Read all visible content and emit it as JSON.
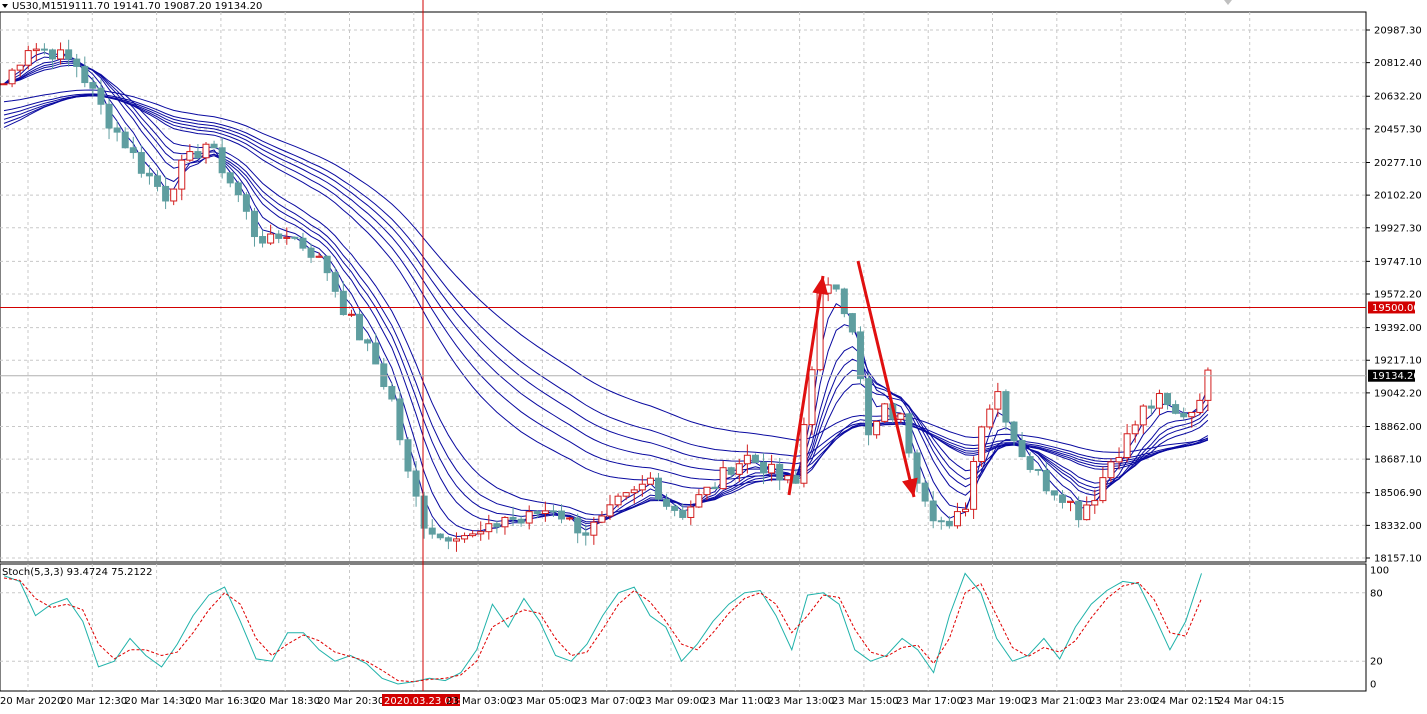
{
  "header": {
    "symbol": "US30,M15",
    "ohlc": "19111.70 19141.70 19087.20 19134.20"
  },
  "indicator": {
    "label": "Stoch(5,3,3) 93.4724 75.2122",
    "levels": [
      "100",
      "80",
      "20",
      "0"
    ]
  },
  "price_axis": {
    "labels": [
      "20987.30",
      "20812.40",
      "20632.20",
      "20457.30",
      "20277.10",
      "20102.20",
      "19927.30",
      "19747.10",
      "19572.20",
      "19392.00",
      "19217.10",
      "19042.20",
      "18862.00",
      "18687.10",
      "18506.90",
      "18332.00",
      "18157.10"
    ],
    "hline_label": "19500.00",
    "current_label": "19134.20"
  },
  "time_axis": {
    "labels": [
      "20 Mar 2020",
      "20 Mar 12:30",
      "20 Mar 14:30",
      "20 Mar 16:30",
      "20 Mar 18:30",
      "20 Mar 20:30",
      "2020.03.23 01:00",
      "23 Mar 03:00",
      "23 Mar 05:00",
      "23 Mar 07:00",
      "23 Mar 09:00",
      "23 Mar 11:00",
      "23 Mar 13:00",
      "23 Mar 15:00",
      "23 Mar 17:00",
      "23 Mar 19:00",
      "23 Mar 21:00",
      "23 Mar 23:00",
      "24 Mar 02:15",
      "24 Mar 04:15"
    ]
  },
  "colors": {
    "bull": "#d21e1e",
    "bear": "#5f9ea0",
    "ma": "#0a0aa0",
    "crosshair": "#d20000",
    "stoch_main": "#20b2aa",
    "stoch_signal": "#e00000",
    "grid": "#c8c8c8"
  },
  "chart_data": {
    "type": "candlestick",
    "symbol": "US30",
    "timeframe": "M15",
    "ylim": [
      18157.1,
      20987.3
    ],
    "horizontal_line": 19500.0,
    "current_price": 19134.2,
    "close_path": [
      [
        0,
        20700
      ],
      [
        3,
        20900
      ],
      [
        6,
        20870
      ],
      [
        9,
        20800
      ],
      [
        11,
        20650
      ],
      [
        13,
        20500
      ],
      [
        15,
        20380
      ],
      [
        17,
        20250
      ],
      [
        20,
        20100
      ],
      [
        22,
        20250
      ],
      [
        25,
        20380
      ],
      [
        27,
        20250
      ],
      [
        29,
        20100
      ],
      [
        31,
        19900
      ],
      [
        33,
        19850
      ],
      [
        35,
        19900
      ],
      [
        38,
        19800
      ],
      [
        40,
        19700
      ],
      [
        42,
        19500
      ],
      [
        44,
        19350
      ],
      [
        46,
        19200
      ],
      [
        48,
        19000
      ],
      [
        50,
        18600
      ],
      [
        52,
        18350
      ],
      [
        54,
        18270
      ],
      [
        56,
        18300
      ],
      [
        58,
        18270
      ],
      [
        60,
        18300
      ],
      [
        62,
        18380
      ],
      [
        64,
        18350
      ],
      [
        66,
        18400
      ],
      [
        68,
        18430
      ],
      [
        70,
        18350
      ],
      [
        72,
        18300
      ],
      [
        74,
        18350
      ],
      [
        76,
        18450
      ],
      [
        78,
        18500
      ],
      [
        80,
        18580
      ],
      [
        82,
        18450
      ],
      [
        84,
        18400
      ],
      [
        86,
        18480
      ],
      [
        88,
        18550
      ],
      [
        90,
        18650
      ],
      [
        92,
        18700
      ],
      [
        94,
        18650
      ],
      [
        96,
        18580
      ],
      [
        98,
        18550
      ],
      [
        100,
        19200
      ],
      [
        101,
        19550
      ],
      [
        103,
        19620
      ],
      [
        105,
        19400
      ],
      [
        107,
        18800
      ],
      [
        109,
        18950
      ],
      [
        111,
        18900
      ],
      [
        113,
        18600
      ],
      [
        115,
        18400
      ],
      [
        117,
        18300
      ],
      [
        119,
        18450
      ],
      [
        121,
        18900
      ],
      [
        123,
        19050
      ],
      [
        125,
        18800
      ],
      [
        127,
        18650
      ],
      [
        129,
        18550
      ],
      [
        131,
        18500
      ],
      [
        133,
        18400
      ],
      [
        135,
        18500
      ],
      [
        137,
        18680
      ],
      [
        139,
        18800
      ],
      [
        141,
        18950
      ],
      [
        143,
        19000
      ],
      [
        145,
        18920
      ],
      [
        147,
        18950
      ],
      [
        149,
        19130
      ]
    ],
    "stochastic": {
      "main": [
        [
          0,
          95
        ],
        [
          2,
          90
        ],
        [
          4,
          60
        ],
        [
          6,
          70
        ],
        [
          8,
          75
        ],
        [
          10,
          55
        ],
        [
          12,
          15
        ],
        [
          14,
          20
        ],
        [
          16,
          40
        ],
        [
          18,
          25
        ],
        [
          20,
          15
        ],
        [
          22,
          35
        ],
        [
          24,
          60
        ],
        [
          26,
          78
        ],
        [
          28,
          85
        ],
        [
          30,
          55
        ],
        [
          32,
          22
        ],
        [
          34,
          20
        ],
        [
          36,
          45
        ],
        [
          38,
          45
        ],
        [
          40,
          30
        ],
        [
          42,
          20
        ],
        [
          44,
          25
        ],
        [
          46,
          18
        ],
        [
          48,
          5
        ],
        [
          50,
          0
        ],
        [
          52,
          2
        ],
        [
          54,
          5
        ],
        [
          56,
          3
        ],
        [
          58,
          10
        ],
        [
          60,
          30
        ],
        [
          62,
          70
        ],
        [
          64,
          50
        ],
        [
          66,
          75
        ],
        [
          68,
          55
        ],
        [
          70,
          25
        ],
        [
          72,
          20
        ],
        [
          74,
          35
        ],
        [
          76,
          60
        ],
        [
          78,
          80
        ],
        [
          80,
          85
        ],
        [
          82,
          60
        ],
        [
          84,
          50
        ],
        [
          86,
          20
        ],
        [
          88,
          35
        ],
        [
          90,
          55
        ],
        [
          92,
          70
        ],
        [
          94,
          80
        ],
        [
          96,
          82
        ],
        [
          98,
          60
        ],
        [
          100,
          30
        ],
        [
          102,
          78
        ],
        [
          104,
          80
        ],
        [
          106,
          70
        ],
        [
          108,
          30
        ],
        [
          110,
          20
        ],
        [
          112,
          25
        ],
        [
          114,
          40
        ],
        [
          116,
          30
        ],
        [
          118,
          10
        ],
        [
          120,
          60
        ],
        [
          122,
          97
        ],
        [
          124,
          80
        ],
        [
          126,
          40
        ],
        [
          128,
          20
        ],
        [
          130,
          25
        ],
        [
          132,
          40
        ],
        [
          134,
          22
        ],
        [
          136,
          50
        ],
        [
          138,
          70
        ],
        [
          140,
          82
        ],
        [
          142,
          90
        ],
        [
          144,
          88
        ],
        [
          146,
          60
        ],
        [
          148,
          30
        ],
        [
          150,
          55
        ],
        [
          152,
          97
        ]
      ],
      "signal": [
        [
          0,
          93
        ],
        [
          2,
          91
        ],
        [
          4,
          75
        ],
        [
          6,
          67
        ],
        [
          8,
          70
        ],
        [
          10,
          65
        ],
        [
          12,
          35
        ],
        [
          14,
          22
        ],
        [
          16,
          30
        ],
        [
          18,
          30
        ],
        [
          20,
          25
        ],
        [
          22,
          28
        ],
        [
          24,
          45
        ],
        [
          26,
          65
        ],
        [
          28,
          80
        ],
        [
          30,
          70
        ],
        [
          32,
          40
        ],
        [
          34,
          25
        ],
        [
          36,
          35
        ],
        [
          38,
          43
        ],
        [
          40,
          38
        ],
        [
          42,
          28
        ],
        [
          44,
          24
        ],
        [
          46,
          20
        ],
        [
          48,
          12
        ],
        [
          50,
          3
        ],
        [
          52,
          2
        ],
        [
          54,
          4
        ],
        [
          56,
          5
        ],
        [
          58,
          8
        ],
        [
          60,
          20
        ],
        [
          62,
          50
        ],
        [
          64,
          58
        ],
        [
          66,
          65
        ],
        [
          68,
          62
        ],
        [
          70,
          40
        ],
        [
          72,
          25
        ],
        [
          74,
          28
        ],
        [
          76,
          48
        ],
        [
          78,
          70
        ],
        [
          80,
          82
        ],
        [
          82,
          72
        ],
        [
          84,
          55
        ],
        [
          86,
          35
        ],
        [
          88,
          30
        ],
        [
          90,
          45
        ],
        [
          92,
          62
        ],
        [
          94,
          75
        ],
        [
          96,
          80
        ],
        [
          98,
          70
        ],
        [
          100,
          45
        ],
        [
          102,
          60
        ],
        [
          104,
          78
        ],
        [
          106,
          76
        ],
        [
          108,
          48
        ],
        [
          110,
          28
        ],
        [
          112,
          24
        ],
        [
          114,
          32
        ],
        [
          116,
          34
        ],
        [
          118,
          18
        ],
        [
          120,
          40
        ],
        [
          122,
          80
        ],
        [
          124,
          88
        ],
        [
          126,
          60
        ],
        [
          128,
          32
        ],
        [
          130,
          24
        ],
        [
          132,
          32
        ],
        [
          134,
          28
        ],
        [
          136,
          38
        ],
        [
          138,
          58
        ],
        [
          140,
          75
        ],
        [
          142,
          86
        ],
        [
          144,
          89
        ],
        [
          146,
          74
        ],
        [
          148,
          45
        ],
        [
          150,
          42
        ],
        [
          152,
          75
        ]
      ]
    }
  }
}
